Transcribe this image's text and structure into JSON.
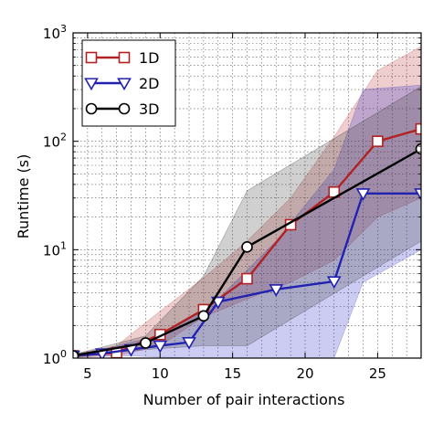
{
  "chart_data": {
    "type": "line",
    "title": "",
    "xlabel": "Number of pair interactions",
    "ylabel": "Runtime (s)",
    "xlim": [
      4,
      28
    ],
    "ylim": [
      1,
      1000
    ],
    "yscale": "log",
    "grid": true,
    "legend_position": "top-left",
    "xticks": [
      5,
      10,
      15,
      20,
      25
    ],
    "xtick_labels": [
      "5",
      "10",
      "15",
      "20",
      "25"
    ],
    "yticks": [
      1,
      10,
      100,
      1000
    ],
    "ytick_labels": [
      {
        "base": "10",
        "exp": "0"
      },
      {
        "base": "10",
        "exp": "1"
      },
      {
        "base": "10",
        "exp": "2"
      },
      {
        "base": "10",
        "exp": "3"
      }
    ],
    "series": [
      {
        "name": "1D",
        "color": "#b22222",
        "marker": "square",
        "x": [
          4,
          7,
          10,
          13,
          16,
          19,
          22,
          25,
          28
        ],
        "y": [
          1.05,
          1.12,
          1.65,
          2.8,
          5.4,
          17,
          34,
          100,
          130
        ],
        "band_upper": [
          1.08,
          1.3,
          2.7,
          5.5,
          12,
          30,
          110,
          450,
          750
        ],
        "band_lower": [
          1.02,
          1.05,
          1.3,
          2.4,
          3.5,
          5,
          8,
          20,
          30
        ]
      },
      {
        "name": "2D",
        "color": "#2222b2",
        "marker": "triangle-down",
        "x": [
          4,
          6,
          8,
          10,
          12,
          14,
          18,
          22,
          24,
          28
        ],
        "y": [
          1.05,
          1.1,
          1.2,
          1.3,
          1.4,
          3.3,
          4.3,
          5.1,
          33,
          33
        ],
        "band_upper": [
          1.08,
          1.2,
          1.4,
          1.6,
          2.3,
          3.5,
          12,
          55,
          300,
          330
        ],
        "band_lower": [
          1.02,
          1.05,
          1.05,
          1.02,
          1,
          1,
          1,
          1,
          5,
          10
        ]
      },
      {
        "name": "3D",
        "color": "#000000",
        "marker": "circle",
        "x": [
          4,
          9,
          13,
          16,
          28
        ],
        "y": [
          1.05,
          1.38,
          2.45,
          10.6,
          85
        ],
        "band_upper": [
          1.08,
          1.6,
          5.7,
          35,
          320
        ],
        "band_lower": [
          1.02,
          1.2,
          1.3,
          1.3,
          12
        ]
      }
    ]
  }
}
